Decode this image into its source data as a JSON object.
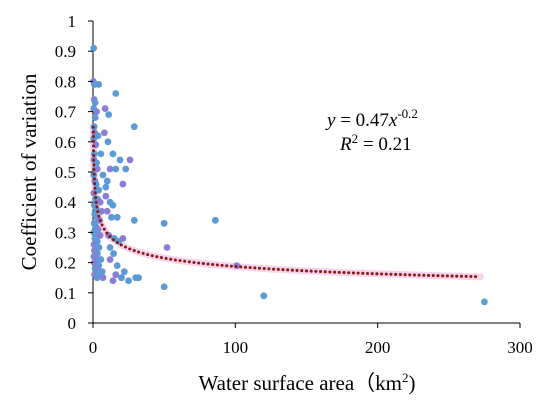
{
  "chart_data": {
    "type": "scatter",
    "title": "",
    "xlabel": "Water surface area（km",
    "xlabel_sup": "2",
    "xlabel_close": ")",
    "ylabel": "Coefficient of variation",
    "xlim": [
      0,
      300
    ],
    "ylim": [
      0,
      1
    ],
    "xticks": [
      0,
      100,
      200,
      300
    ],
    "yticks": [
      0,
      0.1,
      0.2,
      0.3,
      0.4,
      0.5,
      0.6,
      0.7,
      0.8,
      0.9,
      1
    ],
    "xtick_labels": [
      "0",
      "100",
      "200",
      "300"
    ],
    "ytick_labels": [
      "0",
      "0.1",
      "0.2",
      "0.3",
      "0.4",
      "0.5",
      "0.6",
      "0.7",
      "0.8",
      "0.9",
      "1"
    ],
    "grid": false,
    "legend": "none",
    "point_color": "#5b9bd5",
    "point_color_alt": "#8a7fd6",
    "trend_color": "#8b1a1a",
    "trend_band_color": "#f8d4ec",
    "series": [
      {
        "values": [
          [
            0.5,
            0.91
          ],
          [
            0.3,
            0.8
          ],
          [
            1.0,
            0.79
          ],
          [
            4.0,
            0.79
          ],
          [
            0.8,
            0.74
          ],
          [
            1.5,
            0.73
          ],
          [
            0.5,
            0.71
          ],
          [
            2.5,
            0.7
          ],
          [
            1.5,
            0.68
          ],
          [
            0.8,
            0.65
          ],
          [
            1.2,
            0.63
          ],
          [
            3.5,
            0.62
          ],
          [
            0.5,
            0.61
          ],
          [
            2.0,
            0.59
          ],
          [
            1.0,
            0.56
          ],
          [
            5.5,
            0.56
          ],
          [
            0.7,
            0.54
          ],
          [
            2.5,
            0.53
          ],
          [
            1.5,
            0.51
          ],
          [
            3.0,
            0.51
          ],
          [
            0.5,
            0.49
          ],
          [
            7.0,
            0.49
          ],
          [
            1.3,
            0.47
          ],
          [
            2.2,
            0.46
          ],
          [
            4.0,
            0.44
          ],
          [
            0.6,
            0.43
          ],
          [
            1.7,
            0.41
          ],
          [
            3.3,
            0.41
          ],
          [
            5.0,
            0.4
          ],
          [
            0.9,
            0.39
          ],
          [
            2.0,
            0.38
          ],
          [
            6.0,
            0.37
          ],
          [
            1.2,
            0.36
          ],
          [
            2.8,
            0.35
          ],
          [
            4.5,
            0.34
          ],
          [
            0.8,
            0.33
          ],
          [
            1.9,
            0.32
          ],
          [
            3.6,
            0.31
          ],
          [
            0.5,
            0.3
          ],
          [
            2.4,
            0.3
          ],
          [
            5.0,
            0.29
          ],
          [
            1.3,
            0.28
          ],
          [
            3.0,
            0.27
          ],
          [
            0.7,
            0.26
          ],
          [
            2.2,
            0.25
          ],
          [
            4.2,
            0.25
          ],
          [
            1.0,
            0.24
          ],
          [
            3.1,
            0.23
          ],
          [
            0.6,
            0.22
          ],
          [
            1.8,
            0.22
          ],
          [
            5.5,
            0.21
          ],
          [
            2.6,
            0.2
          ],
          [
            0.9,
            0.2
          ],
          [
            4.0,
            0.19
          ],
          [
            1.5,
            0.18
          ],
          [
            3.3,
            0.18
          ],
          [
            6.5,
            0.17
          ],
          [
            2.0,
            0.17
          ],
          [
            1.1,
            0.16
          ],
          [
            4.6,
            0.16
          ],
          [
            2.8,
            0.15
          ],
          [
            8.5,
            0.71
          ],
          [
            11.0,
            0.69
          ],
          [
            16.0,
            0.76
          ],
          [
            8.0,
            0.63
          ],
          [
            10.5,
            0.6
          ],
          [
            16.0,
            0.51
          ],
          [
            12.0,
            0.51
          ],
          [
            14.0,
            0.56
          ],
          [
            19.0,
            0.54
          ],
          [
            26.0,
            0.54
          ],
          [
            23.0,
            0.51
          ],
          [
            29.0,
            0.65
          ],
          [
            21.0,
            0.46
          ],
          [
            10.0,
            0.47
          ],
          [
            9.0,
            0.45
          ],
          [
            9.0,
            0.42
          ],
          [
            12.0,
            0.4
          ],
          [
            14.0,
            0.39
          ],
          [
            10.0,
            0.37
          ],
          [
            13.0,
            0.35
          ],
          [
            17.0,
            0.35
          ],
          [
            11.0,
            0.29
          ],
          [
            15.0,
            0.28
          ],
          [
            18.0,
            0.27
          ],
          [
            21.0,
            0.28
          ],
          [
            12.0,
            0.25
          ],
          [
            14.5,
            0.23
          ],
          [
            12.0,
            0.21
          ],
          [
            17.0,
            0.19
          ],
          [
            22.0,
            0.17
          ],
          [
            16.0,
            0.16
          ],
          [
            20.0,
            0.15
          ],
          [
            25.0,
            0.14
          ],
          [
            14.0,
            0.14
          ],
          [
            30.0,
            0.15
          ],
          [
            32.0,
            0.15
          ],
          [
            7.0,
            0.15
          ],
          [
            29.0,
            0.34
          ],
          [
            50.0,
            0.33
          ],
          [
            52.0,
            0.25
          ],
          [
            50.0,
            0.12
          ],
          [
            86.0,
            0.34
          ],
          [
            101.0,
            0.19
          ],
          [
            120.0,
            0.09
          ],
          [
            275.0,
            0.07
          ]
        ]
      }
    ],
    "trendline": {
      "equation": "y = 0.47x^-0.2",
      "a": 0.47,
      "b": -0.2,
      "x_start": 0.2,
      "x_end": 272
    },
    "annotations": {
      "eq_y": "y",
      "eq_equals": " = 0.47",
      "eq_x": "x",
      "eq_exp": "-0.2",
      "r2_r": "R",
      "r2_sup": "2",
      "r2_rest": " = 0.21"
    }
  }
}
